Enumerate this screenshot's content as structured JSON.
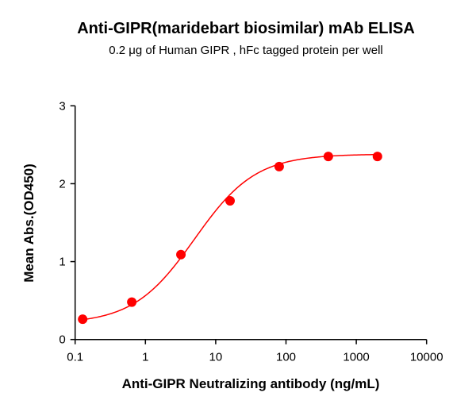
{
  "chart_data": {
    "type": "scatter",
    "title": "Anti-GIPR(maridebart biosimilar) mAb ELISA",
    "subtitle": "0.2 μg of Human GIPR , hFc tagged protein per well",
    "xlabel": "Anti-GIPR Neutralizing antibody (ng/mL)",
    "ylabel": "Mean Abs.(OD450)",
    "xscale": "log",
    "xlim": [
      0.1,
      10000
    ],
    "ylim": [
      0,
      3
    ],
    "xticks": [
      "0.1",
      "1",
      "10",
      "100",
      "1000",
      "10000"
    ],
    "yticks": [
      "0",
      "1",
      "2",
      "3"
    ],
    "grid": false,
    "color": "#ff0000",
    "fit": "sigmoidal curve",
    "x": [
      0.128,
      0.64,
      3.2,
      16,
      80,
      400,
      2000
    ],
    "y": [
      0.26,
      0.48,
      1.09,
      1.78,
      2.22,
      2.35,
      2.35
    ]
  }
}
